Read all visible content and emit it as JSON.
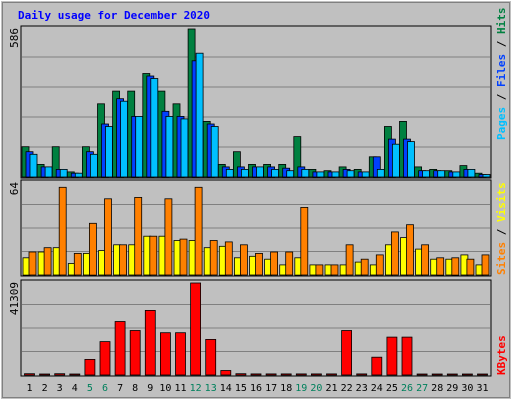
{
  "title": "Daily usage for December 2020",
  "colors": {
    "background": "#c0c0c0",
    "plot_area": "#c0c0c0",
    "title_text": "#0000ff",
    "hits": "#008040",
    "files": "#0040ff",
    "pages": "#00c0ff",
    "visits": "#ffff00",
    "sites": "#ff8000",
    "kbytes": "#ff0000",
    "weekend_label": "#00805c",
    "grid": "#808080"
  },
  "chart_data": [
    {
      "type": "bar",
      "panel": "hits-files-pages",
      "max_label": "586",
      "ylim": [
        0,
        586
      ],
      "legend_labels": [
        "Pages",
        "Files",
        "Hits"
      ],
      "categories": [
        "1",
        "2",
        "3",
        "4",
        "5",
        "6",
        "7",
        "8",
        "9",
        "10",
        "11",
        "12",
        "13",
        "14",
        "15",
        "16",
        "17",
        "18",
        "19",
        "20",
        "21",
        "22",
        "23",
        "24",
        "25",
        "26",
        "27",
        "28",
        "29",
        "30",
        "31"
      ],
      "series": [
        {
          "name": "Hits",
          "values": [
            120,
            50,
            120,
            20,
            120,
            290,
            340,
            340,
            410,
            340,
            290,
            586,
            220,
            50,
            100,
            50,
            50,
            50,
            160,
            30,
            25,
            40,
            30,
            80,
            200,
            220,
            40,
            30,
            25,
            45,
            15
          ]
        },
        {
          "name": "Files",
          "values": [
            100,
            40,
            30,
            15,
            100,
            210,
            310,
            240,
            400,
            260,
            240,
            460,
            210,
            40,
            40,
            40,
            40,
            35,
            40,
            20,
            20,
            30,
            20,
            80,
            150,
            150,
            25,
            25,
            20,
            30,
            10
          ]
        },
        {
          "name": "Pages",
          "values": [
            90,
            40,
            30,
            15,
            90,
            200,
            300,
            240,
            390,
            240,
            230,
            490,
            200,
            30,
            30,
            40,
            30,
            25,
            30,
            20,
            20,
            25,
            20,
            30,
            130,
            140,
            25,
            25,
            20,
            30,
            10
          ]
        }
      ]
    },
    {
      "type": "bar",
      "panel": "visits-sites",
      "max_label": "64",
      "ylim": [
        0,
        64
      ],
      "legend_labels": [
        "Sites",
        "Visits"
      ],
      "categories": [
        "1",
        "2",
        "3",
        "4",
        "5",
        "6",
        "7",
        "8",
        "9",
        "10",
        "11",
        "12",
        "13",
        "14",
        "15",
        "16",
        "17",
        "18",
        "19",
        "20",
        "21",
        "22",
        "23",
        "24",
        "25",
        "26",
        "27",
        "28",
        "29",
        "30",
        "31"
      ],
      "series": [
        {
          "name": "Visits",
          "values": [
            12,
            16,
            19,
            8,
            15,
            17,
            21,
            21,
            27,
            27,
            24,
            24,
            19,
            20,
            12,
            13,
            11,
            7,
            12,
            7,
            7,
            7,
            9,
            7,
            21,
            26,
            18,
            11,
            11,
            14,
            7
          ]
        },
        {
          "name": "Sites",
          "values": [
            16,
            19,
            61,
            15,
            36,
            53,
            21,
            54,
            27,
            53,
            25,
            61,
            24,
            23,
            21,
            15,
            16,
            16,
            47,
            7,
            7,
            21,
            11,
            14,
            30,
            35,
            21,
            12,
            12,
            11,
            14
          ]
        }
      ]
    },
    {
      "type": "bar",
      "panel": "kbytes",
      "max_label": "41309",
      "ylim": [
        0,
        41309
      ],
      "legend_labels": [
        "KBytes"
      ],
      "categories": [
        "1",
        "2",
        "3",
        "4",
        "5",
        "6",
        "7",
        "8",
        "9",
        "10",
        "11",
        "12",
        "13",
        "14",
        "15",
        "16",
        "17",
        "18",
        "19",
        "20",
        "21",
        "22",
        "23",
        "24",
        "25",
        "26",
        "27",
        "28",
        "29",
        "30",
        "31"
      ],
      "series": [
        {
          "name": "KBytes",
          "values": [
            600,
            400,
            600,
            300,
            7000,
            15000,
            24000,
            20000,
            29000,
            19000,
            19000,
            41309,
            16000,
            2000,
            600,
            500,
            500,
            500,
            500,
            500,
            500,
            20000,
            500,
            8000,
            17000,
            17000,
            400,
            400,
            400,
            400,
            400
          ]
        }
      ]
    }
  ],
  "x_labels": [
    "1",
    "2",
    "3",
    "4",
    "5",
    "6",
    "7",
    "8",
    "9",
    "10",
    "11",
    "12",
    "13",
    "14",
    "15",
    "16",
    "17",
    "18",
    "19",
    "20",
    "21",
    "22",
    "23",
    "24",
    "25",
    "26",
    "27",
    "28",
    "29",
    "30",
    "31"
  ],
  "weekend_days": [
    5,
    6,
    12,
    13,
    19,
    20,
    26,
    27
  ]
}
